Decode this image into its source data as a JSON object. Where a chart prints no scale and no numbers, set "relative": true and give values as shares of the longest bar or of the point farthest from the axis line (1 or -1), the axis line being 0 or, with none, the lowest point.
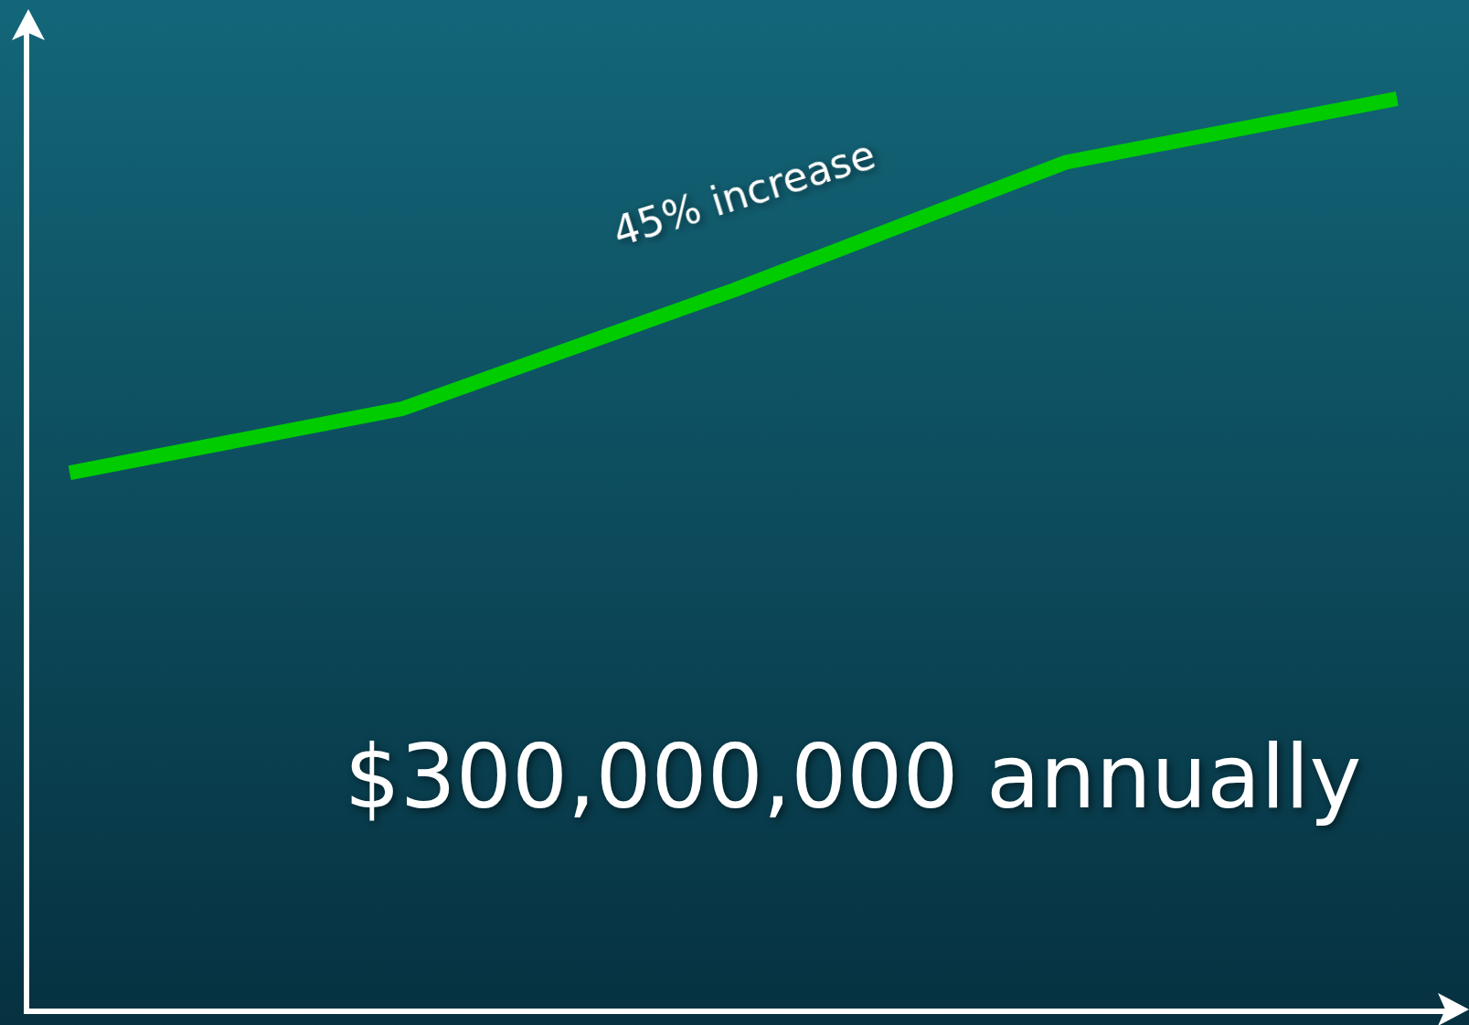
{
  "chart_data": {
    "type": "line",
    "relative": true,
    "categories": [
      null,
      null,
      null,
      null,
      null
    ],
    "series": [
      {
        "color": "#00cc00",
        "values": [
          0.59,
          0.66,
          0.79,
          0.93,
          1
        ]
      }
    ],
    "annotations": [
      "45% increase",
      "$300,000,000 annually"
    ],
    "grid": false,
    "legend": false,
    "marker": "none",
    "line_style": "solid",
    "tick_labels": false
  }
}
